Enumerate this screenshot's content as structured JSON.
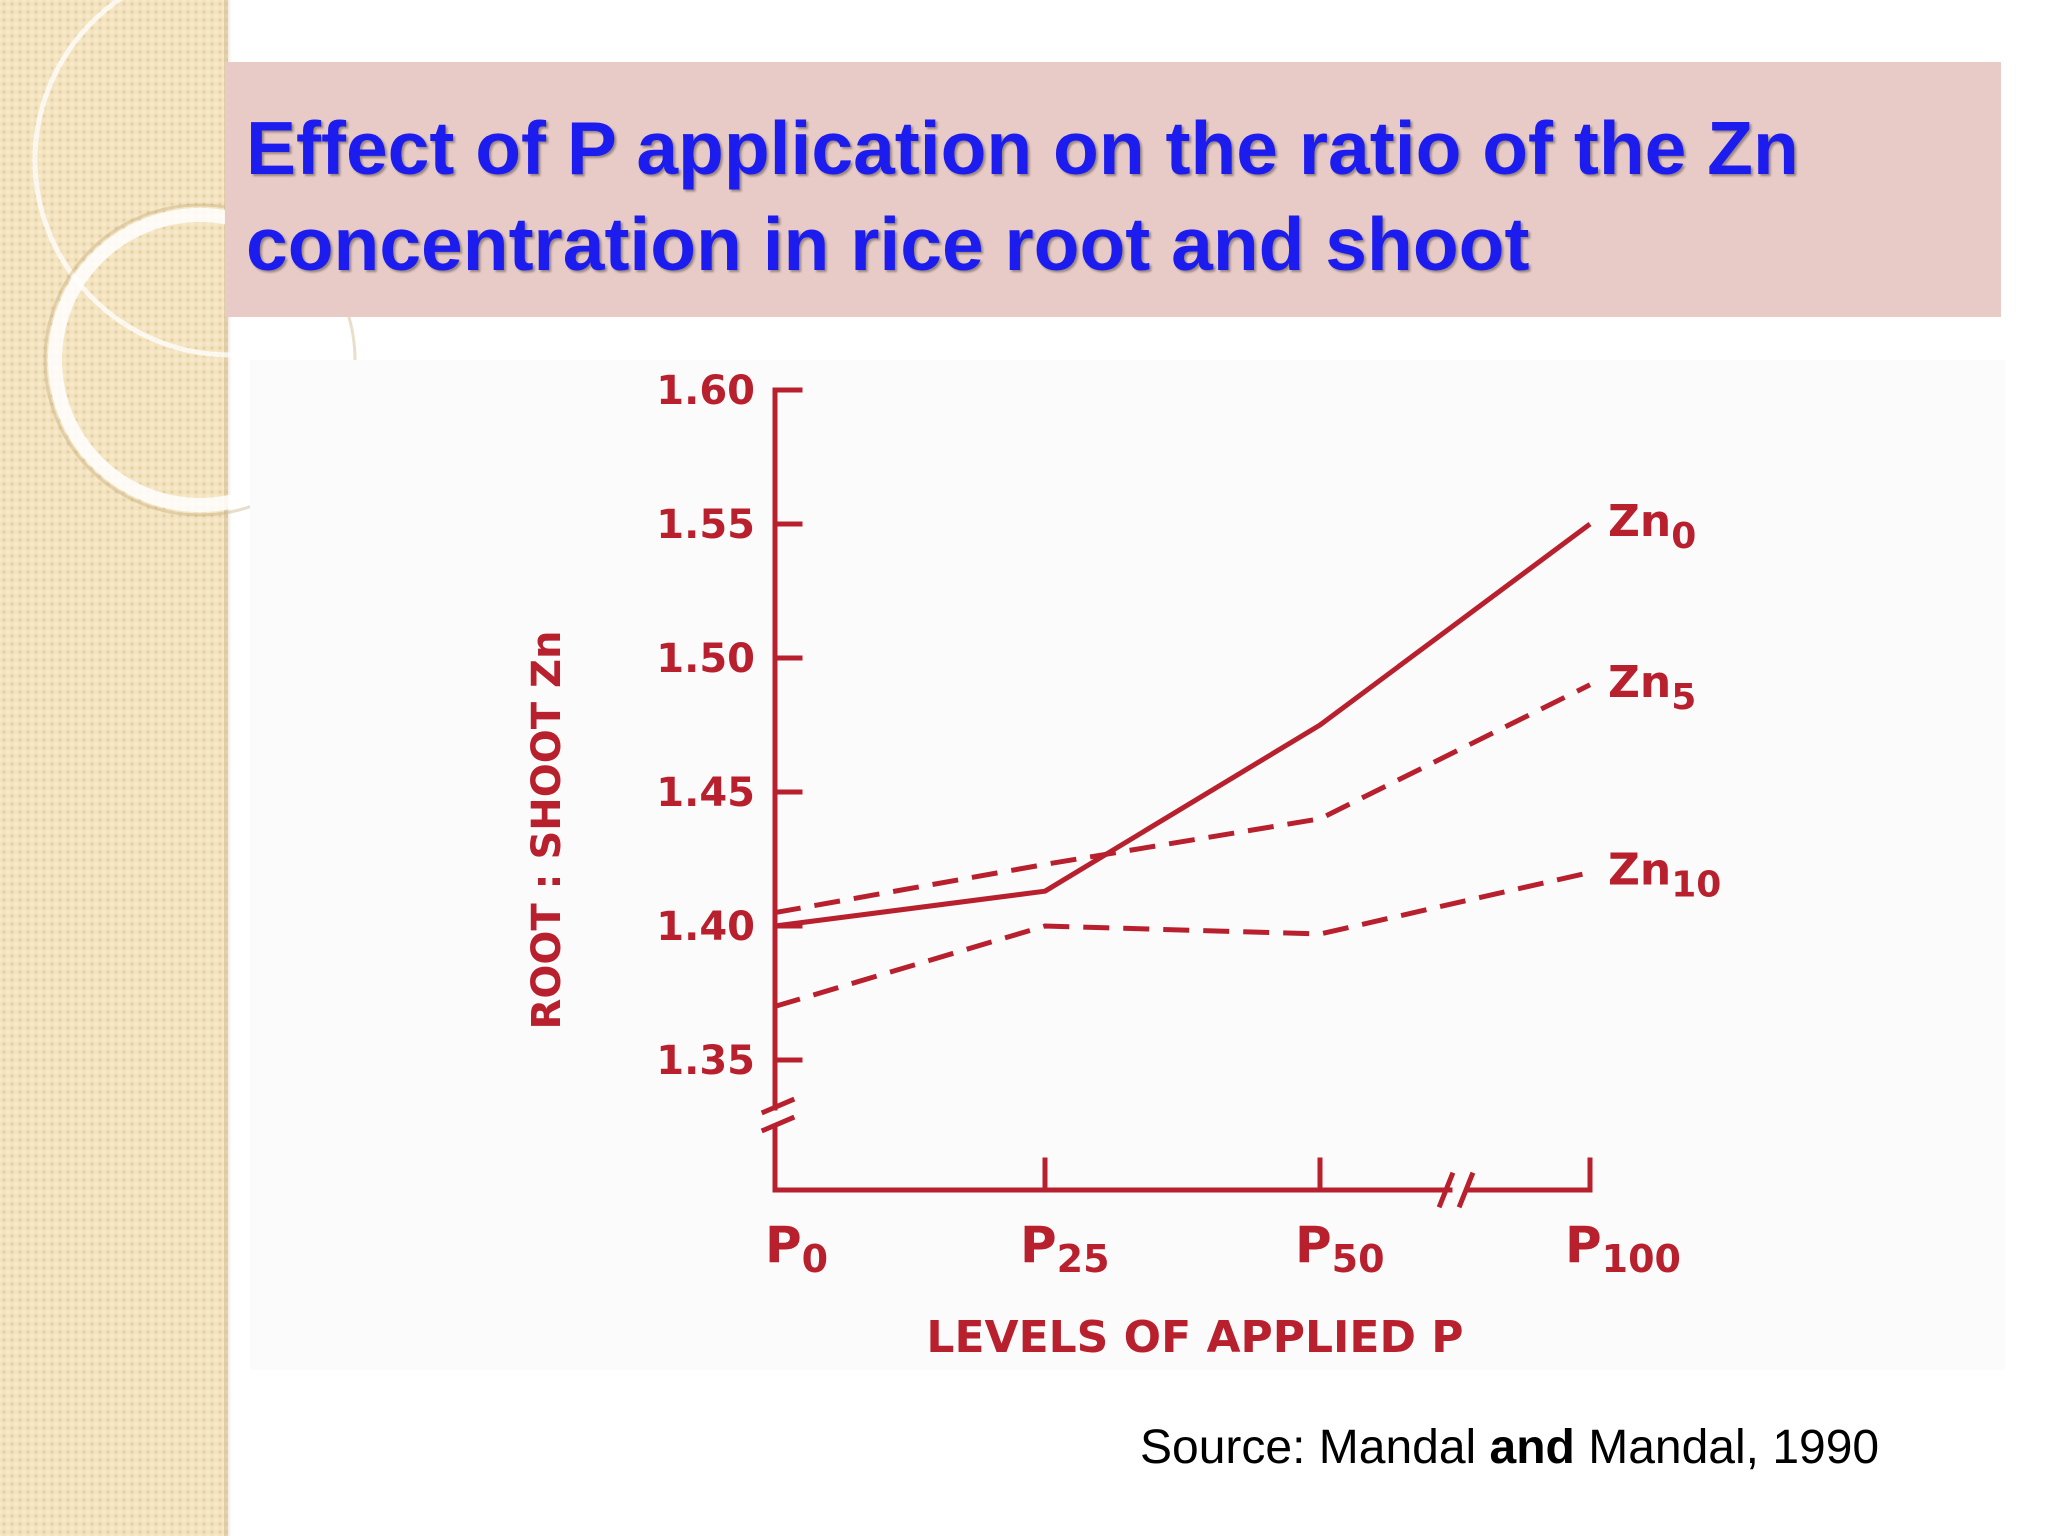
{
  "slide": {
    "title": "Effect of P application on the ratio of the Zn concentration in rice root and shoot",
    "source_prefix": "Source: Mandal ",
    "source_bold": "and",
    "source_suffix": " Mandal, 1990"
  },
  "colors": {
    "title": "#1c1cee",
    "title_band": "#e8cbc6",
    "chart_ink": "#b8202e",
    "side_strip": "#f3e3bf"
  },
  "chart_data": {
    "type": "line",
    "title": "",
    "xlabel": "LEVELS OF APPLIED P",
    "ylabel": "ROOT : SHOOT Zn",
    "categories": [
      {
        "base": "P",
        "sub": "0"
      },
      {
        "base": "P",
        "sub": "25"
      },
      {
        "base": "P",
        "sub": "50"
      },
      {
        "base": "P",
        "sub": "100"
      }
    ],
    "ylim": [
      1.35,
      1.6
    ],
    "yticks": [
      "1.60",
      "1.55",
      "1.50",
      "1.45",
      "1.40",
      "1.35"
    ],
    "y_axis_break": true,
    "x_axis_break_between": [
      "P50",
      "P100"
    ],
    "grid": false,
    "legend": "inline labels at line ends",
    "series": [
      {
        "name": "Zn",
        "sub": "0",
        "style": "solid",
        "values": [
          1.4,
          1.413,
          1.475,
          1.55
        ]
      },
      {
        "name": "Zn",
        "sub": "5",
        "style": "dashed",
        "values": [
          1.405,
          1.423,
          1.44,
          1.49
        ]
      },
      {
        "name": "Zn",
        "sub": "10",
        "style": "dashed",
        "values": [
          1.37,
          1.4,
          1.397,
          1.42
        ]
      }
    ]
  }
}
